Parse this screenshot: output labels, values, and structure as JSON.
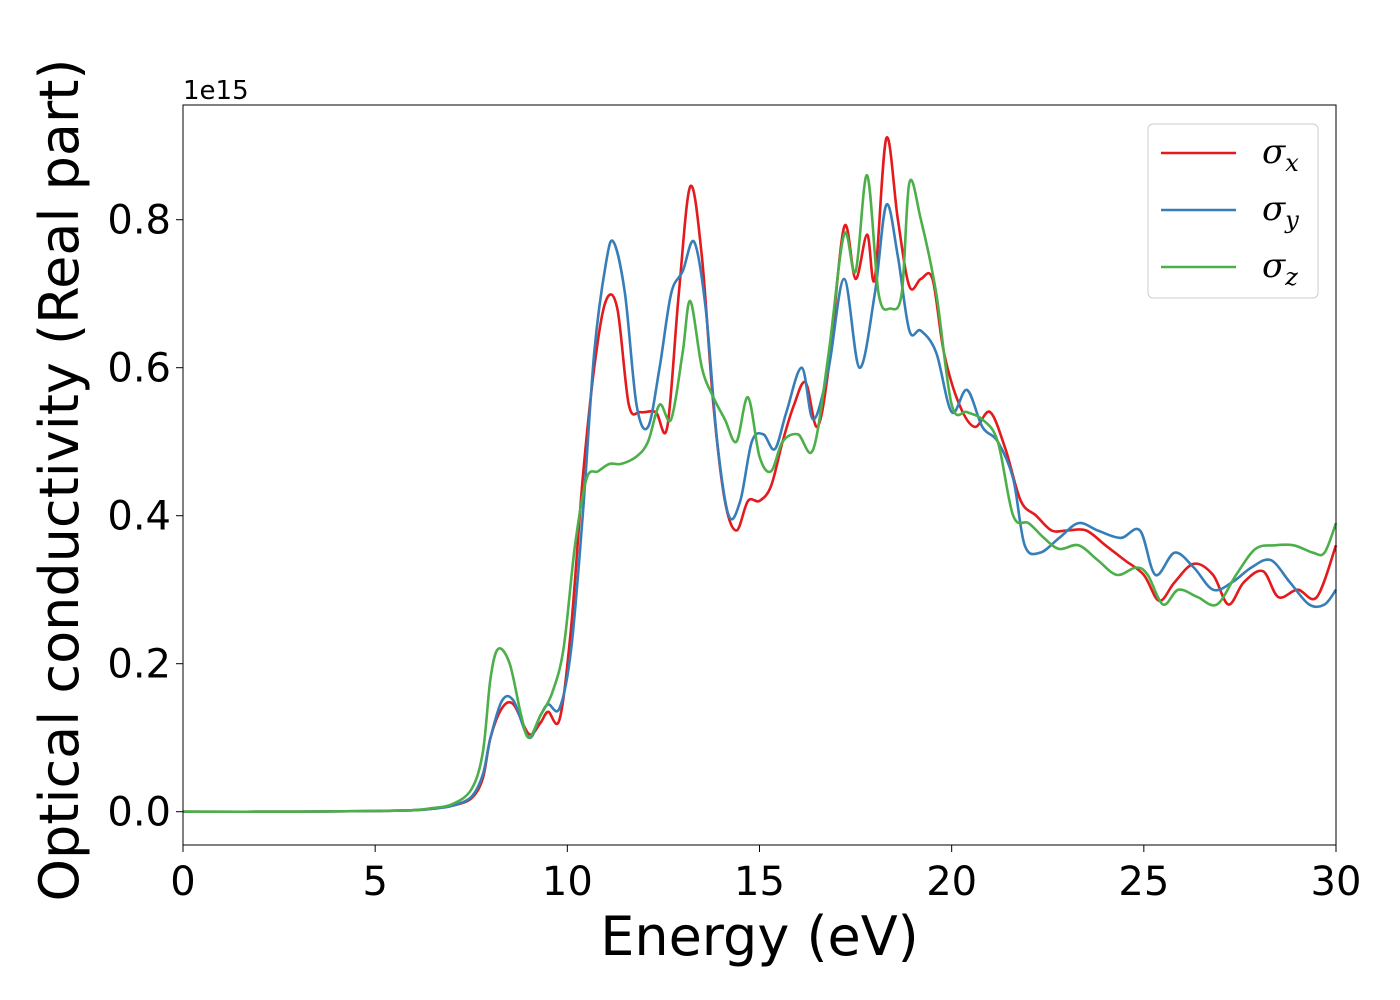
{
  "chart_data": {
    "type": "line",
    "xlabel": "Energy (eV)",
    "ylabel": "Optical conductivity (Real part)",
    "y_offset_label": "1e15",
    "xlim": [
      0,
      30
    ],
    "ylim": [
      -0.045,
      0.955
    ],
    "x_ticks": [
      0,
      5,
      10,
      15,
      20,
      25,
      30
    ],
    "x_tick_labels": [
      "0",
      "5",
      "10",
      "15",
      "20",
      "25",
      "30"
    ],
    "y_ticks": [
      0.0,
      0.2,
      0.4,
      0.6,
      0.8
    ],
    "y_tick_labels": [
      "0.0",
      "0.2",
      "0.4",
      "0.6",
      "0.8"
    ],
    "grid": false,
    "legend": {
      "placement": "top-right",
      "entries": [
        {
          "symbol": "σ",
          "subscript": "x",
          "color": "#e41a1c"
        },
        {
          "symbol": "σ",
          "subscript": "y",
          "color": "#377eb8"
        },
        {
          "symbol": "σ",
          "subscript": "z",
          "color": "#4daf4a"
        }
      ]
    },
    "series": [
      {
        "color": "#e41a1c",
        "points": [
          [
            0,
            0
          ],
          [
            3,
            0.0
          ],
          [
            5,
            0.001
          ],
          [
            6,
            0.002
          ],
          [
            6.5,
            0.004
          ],
          [
            7,
            0.008
          ],
          [
            7.5,
            0.018
          ],
          [
            7.8,
            0.045
          ],
          [
            8.0,
            0.1
          ],
          [
            8.3,
            0.14
          ],
          [
            8.6,
            0.145
          ],
          [
            9.0,
            0.105
          ],
          [
            9.3,
            0.12
          ],
          [
            9.5,
            0.135
          ],
          [
            9.8,
            0.125
          ],
          [
            10.1,
            0.25
          ],
          [
            10.4,
            0.45
          ],
          [
            10.7,
            0.6
          ],
          [
            11.0,
            0.69
          ],
          [
            11.3,
            0.68
          ],
          [
            11.6,
            0.55
          ],
          [
            11.9,
            0.54
          ],
          [
            12.3,
            0.54
          ],
          [
            12.6,
            0.52
          ],
          [
            12.9,
            0.7
          ],
          [
            13.2,
            0.845
          ],
          [
            13.5,
            0.75
          ],
          [
            13.8,
            0.55
          ],
          [
            14.1,
            0.42
          ],
          [
            14.4,
            0.38
          ],
          [
            14.7,
            0.42
          ],
          [
            15.0,
            0.42
          ],
          [
            15.3,
            0.44
          ],
          [
            15.6,
            0.5
          ],
          [
            15.9,
            0.55
          ],
          [
            16.2,
            0.58
          ],
          [
            16.5,
            0.52
          ],
          [
            16.8,
            0.6
          ],
          [
            17.2,
            0.79
          ],
          [
            17.5,
            0.72
          ],
          [
            17.8,
            0.78
          ],
          [
            18.0,
            0.72
          ],
          [
            18.3,
            0.91
          ],
          [
            18.6,
            0.8
          ],
          [
            18.9,
            0.71
          ],
          [
            19.2,
            0.72
          ],
          [
            19.5,
            0.72
          ],
          [
            19.8,
            0.62
          ],
          [
            20.2,
            0.55
          ],
          [
            20.6,
            0.52
          ],
          [
            21.0,
            0.54
          ],
          [
            21.4,
            0.49
          ],
          [
            21.8,
            0.42
          ],
          [
            22.2,
            0.4
          ],
          [
            22.6,
            0.38
          ],
          [
            23.0,
            0.38
          ],
          [
            23.5,
            0.38
          ],
          [
            24.0,
            0.36
          ],
          [
            24.5,
            0.34
          ],
          [
            25.0,
            0.32
          ],
          [
            25.4,
            0.285
          ],
          [
            25.8,
            0.31
          ],
          [
            26.3,
            0.335
          ],
          [
            26.8,
            0.32
          ],
          [
            27.2,
            0.28
          ],
          [
            27.6,
            0.31
          ],
          [
            28.1,
            0.325
          ],
          [
            28.5,
            0.29
          ],
          [
            29.0,
            0.3
          ],
          [
            29.5,
            0.29
          ],
          [
            30.0,
            0.36
          ]
        ]
      },
      {
        "color": "#377eb8",
        "points": [
          [
            0,
            0
          ],
          [
            3,
            0.0
          ],
          [
            5,
            0.001
          ],
          [
            6,
            0.002
          ],
          [
            6.5,
            0.004
          ],
          [
            7,
            0.008
          ],
          [
            7.5,
            0.02
          ],
          [
            7.8,
            0.05
          ],
          [
            8.0,
            0.1
          ],
          [
            8.3,
            0.15
          ],
          [
            8.6,
            0.15
          ],
          [
            9.0,
            0.1
          ],
          [
            9.3,
            0.13
          ],
          [
            9.5,
            0.145
          ],
          [
            9.8,
            0.14
          ],
          [
            10.1,
            0.22
          ],
          [
            10.4,
            0.4
          ],
          [
            10.7,
            0.62
          ],
          [
            11.0,
            0.74
          ],
          [
            11.2,
            0.77
          ],
          [
            11.5,
            0.7
          ],
          [
            11.8,
            0.55
          ],
          [
            12.1,
            0.52
          ],
          [
            12.4,
            0.6
          ],
          [
            12.7,
            0.7
          ],
          [
            13.0,
            0.73
          ],
          [
            13.3,
            0.77
          ],
          [
            13.6,
            0.68
          ],
          [
            13.9,
            0.5
          ],
          [
            14.2,
            0.4
          ],
          [
            14.5,
            0.42
          ],
          [
            14.8,
            0.5
          ],
          [
            15.1,
            0.51
          ],
          [
            15.4,
            0.49
          ],
          [
            15.7,
            0.54
          ],
          [
            16.1,
            0.6
          ],
          [
            16.4,
            0.53
          ],
          [
            16.8,
            0.6
          ],
          [
            17.2,
            0.72
          ],
          [
            17.6,
            0.6
          ],
          [
            18.0,
            0.7
          ],
          [
            18.3,
            0.82
          ],
          [
            18.6,
            0.75
          ],
          [
            18.9,
            0.65
          ],
          [
            19.2,
            0.65
          ],
          [
            19.6,
            0.62
          ],
          [
            20.0,
            0.54
          ],
          [
            20.4,
            0.57
          ],
          [
            20.8,
            0.52
          ],
          [
            21.2,
            0.5
          ],
          [
            21.6,
            0.45
          ],
          [
            21.9,
            0.36
          ],
          [
            22.3,
            0.35
          ],
          [
            22.8,
            0.37
          ],
          [
            23.3,
            0.39
          ],
          [
            23.8,
            0.38
          ],
          [
            24.4,
            0.37
          ],
          [
            24.9,
            0.38
          ],
          [
            25.3,
            0.32
          ],
          [
            25.8,
            0.35
          ],
          [
            26.3,
            0.33
          ],
          [
            26.8,
            0.3
          ],
          [
            27.3,
            0.31
          ],
          [
            27.8,
            0.33
          ],
          [
            28.3,
            0.34
          ],
          [
            28.8,
            0.31
          ],
          [
            29.3,
            0.28
          ],
          [
            29.7,
            0.28
          ],
          [
            30.0,
            0.3
          ]
        ]
      },
      {
        "color": "#4daf4a",
        "points": [
          [
            0,
            0
          ],
          [
            3,
            0.0
          ],
          [
            5,
            0.001
          ],
          [
            6,
            0.002
          ],
          [
            6.5,
            0.005
          ],
          [
            7,
            0.01
          ],
          [
            7.5,
            0.03
          ],
          [
            7.8,
            0.08
          ],
          [
            8.0,
            0.18
          ],
          [
            8.2,
            0.22
          ],
          [
            8.5,
            0.2
          ],
          [
            8.8,
            0.13
          ],
          [
            9.0,
            0.1
          ],
          [
            9.3,
            0.13
          ],
          [
            9.6,
            0.16
          ],
          [
            9.9,
            0.22
          ],
          [
            10.2,
            0.36
          ],
          [
            10.5,
            0.45
          ],
          [
            10.8,
            0.46
          ],
          [
            11.1,
            0.47
          ],
          [
            11.4,
            0.47
          ],
          [
            11.8,
            0.48
          ],
          [
            12.1,
            0.5
          ],
          [
            12.4,
            0.55
          ],
          [
            12.7,
            0.53
          ],
          [
            13.0,
            0.62
          ],
          [
            13.2,
            0.69
          ],
          [
            13.5,
            0.6
          ],
          [
            13.8,
            0.56
          ],
          [
            14.1,
            0.53
          ],
          [
            14.4,
            0.5
          ],
          [
            14.7,
            0.56
          ],
          [
            15.0,
            0.48
          ],
          [
            15.3,
            0.46
          ],
          [
            15.6,
            0.5
          ],
          [
            16.0,
            0.51
          ],
          [
            16.4,
            0.49
          ],
          [
            16.8,
            0.62
          ],
          [
            17.2,
            0.78
          ],
          [
            17.5,
            0.73
          ],
          [
            17.8,
            0.86
          ],
          [
            18.1,
            0.7
          ],
          [
            18.4,
            0.68
          ],
          [
            18.7,
            0.7
          ],
          [
            18.9,
            0.85
          ],
          [
            19.2,
            0.8
          ],
          [
            19.6,
            0.7
          ],
          [
            20.0,
            0.55
          ],
          [
            20.4,
            0.54
          ],
          [
            20.8,
            0.53
          ],
          [
            21.2,
            0.5
          ],
          [
            21.6,
            0.4
          ],
          [
            22.0,
            0.39
          ],
          [
            22.4,
            0.37
          ],
          [
            22.8,
            0.355
          ],
          [
            23.3,
            0.36
          ],
          [
            23.8,
            0.34
          ],
          [
            24.3,
            0.32
          ],
          [
            24.8,
            0.33
          ],
          [
            25.1,
            0.32
          ],
          [
            25.5,
            0.28
          ],
          [
            25.9,
            0.3
          ],
          [
            26.4,
            0.29
          ],
          [
            26.9,
            0.28
          ],
          [
            27.4,
            0.32
          ],
          [
            27.9,
            0.355
          ],
          [
            28.4,
            0.36
          ],
          [
            28.9,
            0.36
          ],
          [
            29.4,
            0.35
          ],
          [
            29.7,
            0.35
          ],
          [
            30.0,
            0.39
          ]
        ]
      }
    ]
  }
}
